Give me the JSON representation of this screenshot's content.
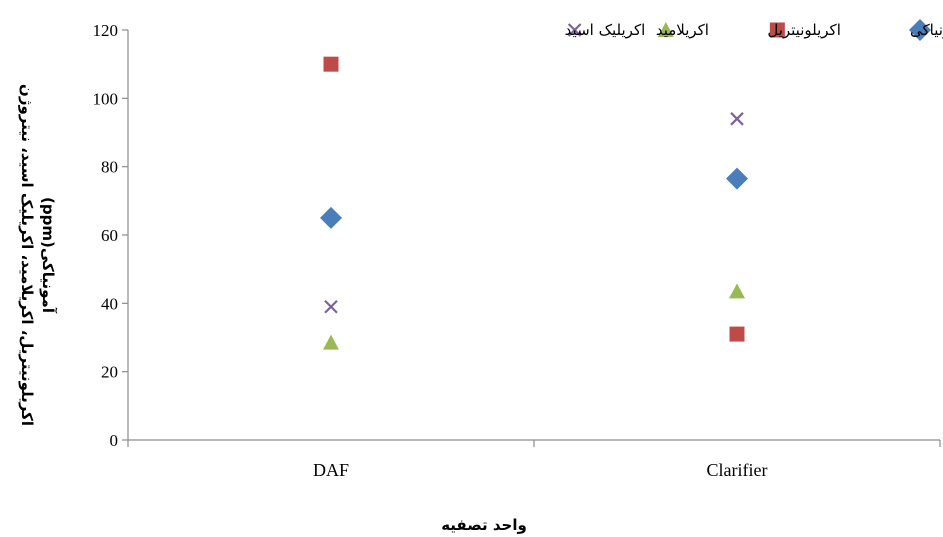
{
  "chart_data": {
    "type": "scatter",
    "title": "",
    "xlabel": "واحد تصفیه",
    "ylabel": [
      "اکریلونیتریل، اکریلامید، اکریلیک اسید، نیتروژن",
      "آمونیاکی(ppm)"
    ],
    "categories": [
      "DAF",
      "Clarifier"
    ],
    "ylim": [
      0,
      120
    ],
    "yticks": [
      0,
      20,
      40,
      60,
      80,
      100,
      120
    ],
    "grid": false,
    "legend_position": "top",
    "series": [
      {
        "name": "نیتروژن آمونیاکی",
        "marker": "diamond",
        "color": "#4a7ebb",
        "values": [
          65,
          76.5
        ]
      },
      {
        "name": "اکریلونیتریل",
        "marker": "square",
        "color": "#be4b48",
        "values": [
          110,
          31
        ]
      },
      {
        "name": "اکریلامید",
        "marker": "triangle",
        "color": "#98b954",
        "values": [
          28.5,
          43.5
        ]
      },
      {
        "name": "اکریلیک اسید",
        "marker": "x",
        "color": "#7d60a0",
        "values": [
          39,
          94
        ]
      }
    ]
  }
}
